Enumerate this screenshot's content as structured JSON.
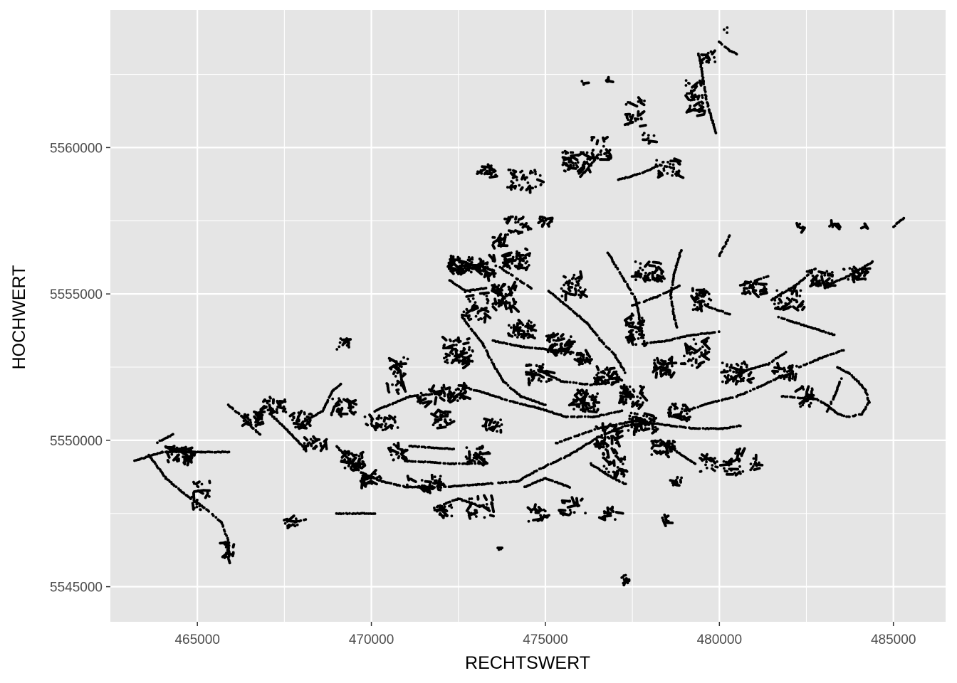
{
  "chart_data": {
    "type": "scatter",
    "title": "",
    "xlabel": "RECHTSWERT",
    "ylabel": "HOCHWERT",
    "xlim": [
      462500,
      486500
    ],
    "ylim": [
      5543800,
      5564700
    ],
    "x_ticks": [
      465000,
      470000,
      475000,
      480000,
      485000
    ],
    "x_tick_labels": [
      "465000",
      "470000",
      "475000",
      "480000",
      "485000"
    ],
    "y_ticks": [
      5545000,
      5550000,
      5555000,
      5560000
    ],
    "y_tick_labels": [
      "5545000",
      "5550000",
      "5555000",
      "5560000"
    ],
    "grid": true,
    "legend": "none",
    "point_color": "#000000",
    "panel_background": "#e5e5e5",
    "gridline_color": "#ffffff",
    "tracks": [
      [
        [
          463200,
          5549300
        ],
        [
          464000,
          5549600
        ],
        [
          465100,
          5549600
        ],
        [
          465900,
          5549600
        ]
      ],
      [
        [
          463600,
          5549500
        ],
        [
          464100,
          5548700
        ],
        [
          464700,
          5548100
        ],
        [
          465200,
          5547700
        ],
        [
          465700,
          5547200
        ],
        [
          465900,
          5546500
        ],
        [
          465900,
          5545900
        ]
      ],
      [
        [
          463800,
          5549900
        ],
        [
          464300,
          5550200
        ]
      ],
      [
        [
          465900,
          5551200
        ],
        [
          466300,
          5550800
        ],
        [
          466600,
          5550400
        ],
        [
          466800,
          5550200
        ]
      ],
      [
        [
          467100,
          5550900
        ],
        [
          467700,
          5550200
        ],
        [
          468100,
          5549700
        ]
      ],
      [
        [
          468000,
          5550600
        ],
        [
          468600,
          5551000
        ],
        [
          468900,
          5551700
        ],
        [
          469200,
          5552000
        ]
      ],
      [
        [
          467600,
          5547000
        ],
        [
          467800,
          5547200
        ],
        [
          468100,
          5547300
        ]
      ],
      [
        [
          469000,
          5549800
        ],
        [
          469700,
          5548900
        ],
        [
          470300,
          5548600
        ],
        [
          471000,
          5548400
        ],
        [
          472000,
          5548400
        ],
        [
          473200,
          5548500
        ],
        [
          474200,
          5548600
        ],
        [
          474800,
          5549000
        ],
        [
          475700,
          5549500
        ],
        [
          476500,
          5550100
        ],
        [
          477300,
          5550500
        ],
        [
          478000,
          5550600
        ],
        [
          478600,
          5550500
        ],
        [
          479300,
          5550400
        ],
        [
          480100,
          5550400
        ],
        [
          480600,
          5550500
        ]
      ],
      [
        [
          469000,
          5547500
        ],
        [
          470100,
          5547500
        ]
      ],
      [
        [
          470100,
          5551000
        ],
        [
          471100,
          5551500
        ],
        [
          472000,
          5551600
        ]
      ],
      [
        [
          471100,
          5549800
        ],
        [
          472400,
          5549700
        ]
      ],
      [
        [
          471000,
          5549300
        ],
        [
          472300,
          5549200
        ],
        [
          473300,
          5549200
        ]
      ],
      [
        [
          471800,
          5547700
        ],
        [
          472500,
          5548000
        ],
        [
          473300,
          5547700
        ]
      ],
      [
        [
          472600,
          5554200
        ],
        [
          473200,
          5553300
        ],
        [
          473500,
          5552600
        ],
        [
          473800,
          5552000
        ],
        [
          474300,
          5551500
        ],
        [
          475000,
          5551200
        ]
      ],
      [
        [
          472700,
          5551800
        ],
        [
          473300,
          5551600
        ],
        [
          474100,
          5551300
        ],
        [
          474800,
          5551100
        ],
        [
          475600,
          5550800
        ],
        [
          476400,
          5550800
        ],
        [
          477200,
          5551000
        ]
      ],
      [
        [
          474400,
          5548400
        ],
        [
          475000,
          5548700
        ],
        [
          475700,
          5548400
        ]
      ],
      [
        [
          475300,
          5549900
        ],
        [
          476500,
          5550400
        ],
        [
          477700,
          5550700
        ]
      ],
      [
        [
          474800,
          5552400
        ],
        [
          475500,
          5552000
        ],
        [
          476300,
          5551900
        ],
        [
          477100,
          5552000
        ]
      ],
      [
        [
          473500,
          5553400
        ],
        [
          474300,
          5553200
        ],
        [
          475100,
          5553100
        ],
        [
          475800,
          5553000
        ]
      ],
      [
        [
          475100,
          5555100
        ],
        [
          475700,
          5554500
        ],
        [
          476200,
          5554000
        ],
        [
          476600,
          5553400
        ],
        [
          477000,
          5552900
        ],
        [
          477300,
          5552300
        ]
      ],
      [
        [
          476800,
          5556400
        ],
        [
          477200,
          5555600
        ],
        [
          477600,
          5554800
        ],
        [
          477700,
          5554200
        ],
        [
          477800,
          5553500
        ]
      ],
      [
        [
          477500,
          5554600
        ],
        [
          478200,
          5554900
        ],
        [
          478900,
          5555300
        ]
      ],
      [
        [
          477800,
          5553300
        ],
        [
          478500,
          5553400
        ],
        [
          479200,
          5553600
        ],
        [
          480000,
          5553700
        ]
      ],
      [
        [
          478900,
          5556500
        ],
        [
          478700,
          5555700
        ],
        [
          478600,
          5555000
        ],
        [
          478700,
          5554200
        ],
        [
          478800,
          5553800
        ]
      ],
      [
        [
          479600,
          5554600
        ],
        [
          480300,
          5554300
        ]
      ],
      [
        [
          480200,
          5552000
        ],
        [
          480800,
          5552400
        ],
        [
          481400,
          5552600
        ],
        [
          481900,
          5553000
        ]
      ],
      [
        [
          479000,
          5551000
        ],
        [
          479800,
          5551300
        ],
        [
          480500,
          5551500
        ],
        [
          481100,
          5551800
        ],
        [
          481800,
          5552200
        ]
      ],
      [
        [
          480600,
          5555300
        ],
        [
          481400,
          5555600
        ]
      ],
      [
        [
          481500,
          5554800
        ],
        [
          482200,
          5555300
        ],
        [
          482800,
          5555900
        ]
      ],
      [
        [
          483100,
          5555300
        ],
        [
          483700,
          5555600
        ],
        [
          484400,
          5556100
        ]
      ],
      [
        [
          481700,
          5554200
        ],
        [
          482500,
          5553900
        ],
        [
          483300,
          5553600
        ]
      ],
      [
        [
          482300,
          5552500
        ],
        [
          482900,
          5552800
        ],
        [
          483600,
          5553100
        ]
      ],
      [
        [
          481800,
          5551500
        ],
        [
          482800,
          5551400
        ],
        [
          483100,
          5551200
        ],
        [
          483400,
          5550900
        ],
        [
          483700,
          5550800
        ],
        [
          484100,
          5550900
        ],
        [
          484300,
          5551300
        ],
        [
          484200,
          5551700
        ],
        [
          484000,
          5552000
        ],
        [
          483700,
          5552300
        ],
        [
          483400,
          5552500
        ]
      ],
      [
        [
          483500,
          5552100
        ],
        [
          483300,
          5551500
        ],
        [
          483100,
          5551000
        ]
      ],
      [
        [
          478300,
          5550000
        ],
        [
          478800,
          5549600
        ],
        [
          479300,
          5549200
        ]
      ],
      [
        [
          476300,
          5549200
        ],
        [
          476800,
          5548800
        ],
        [
          477300,
          5548500
        ]
      ],
      [
        [
          476000,
          5559000
        ],
        [
          476300,
          5559400
        ],
        [
          476600,
          5559900
        ]
      ],
      [
        [
          477100,
          5558900
        ],
        [
          477700,
          5559100
        ],
        [
          478300,
          5559400
        ],
        [
          478700,
          5559300
        ]
      ],
      [
        [
          479400,
          5563200
        ],
        [
          479500,
          5562600
        ],
        [
          479600,
          5561800
        ],
        [
          479700,
          5561300
        ],
        [
          479800,
          5560900
        ],
        [
          479900,
          5560500
        ]
      ],
      [
        [
          480000,
          5563600
        ],
        [
          480300,
          5563300
        ],
        [
          480500,
          5563200
        ]
      ],
      [
        [
          472200,
          5555500
        ],
        [
          472700,
          5555100
        ],
        [
          473300,
          5555200
        ]
      ],
      [
        [
          473700,
          5555900
        ],
        [
          474200,
          5555500
        ],
        [
          474600,
          5555200
        ]
      ],
      [
        [
          480000,
          5556300
        ],
        [
          480300,
          5557000
        ]
      ],
      [
        [
          485000,
          5557300
        ],
        [
          485300,
          5557600
        ]
      ],
      [
        [
          477200,
          5545300
        ],
        [
          477300,
          5545400
        ]
      ]
    ],
    "clusters": [
      [
        464500,
        5549500,
        500,
        400,
        40
      ],
      [
        465100,
        5548100,
        400,
        700,
        25
      ],
      [
        465900,
        5546200,
        200,
        500,
        20
      ],
      [
        466600,
        5550700,
        400,
        350,
        30
      ],
      [
        467200,
        5551200,
        500,
        400,
        35
      ],
      [
        468000,
        5550700,
        400,
        400,
        35
      ],
      [
        468400,
        5549900,
        500,
        300,
        25
      ],
      [
        469200,
        5551200,
        500,
        500,
        30
      ],
      [
        469500,
        5549300,
        400,
        500,
        45
      ],
      [
        470000,
        5548700,
        400,
        300,
        20
      ],
      [
        470300,
        5550600,
        700,
        400,
        30
      ],
      [
        470800,
        5549600,
        400,
        400,
        25
      ],
      [
        471500,
        5548500,
        700,
        400,
        30
      ],
      [
        472000,
        5550700,
        400,
        400,
        25
      ],
      [
        472400,
        5551600,
        500,
        400,
        35
      ],
      [
        473000,
        5549500,
        400,
        400,
        30
      ],
      [
        473500,
        5550500,
        400,
        300,
        20
      ],
      [
        472500,
        5553000,
        600,
        700,
        60
      ],
      [
        473000,
        5554600,
        500,
        700,
        40
      ],
      [
        472600,
        5556000,
        500,
        400,
        60
      ],
      [
        473300,
        5555900,
        400,
        500,
        40
      ],
      [
        473800,
        5554900,
        500,
        600,
        55
      ],
      [
        474200,
        5556200,
        500,
        500,
        40
      ],
      [
        474300,
        5553800,
        500,
        400,
        50
      ],
      [
        474800,
        5552300,
        500,
        500,
        40
      ],
      [
        475400,
        5553300,
        500,
        500,
        45
      ],
      [
        475800,
        5555300,
        500,
        600,
        40
      ],
      [
        476200,
        5551300,
        600,
        500,
        50
      ],
      [
        476800,
        5552200,
        500,
        400,
        45
      ],
      [
        476100,
        5552800,
        300,
        300,
        30
      ],
      [
        476800,
        5550000,
        500,
        700,
        45
      ],
      [
        477000,
        5549100,
        500,
        500,
        35
      ],
      [
        477600,
        5553800,
        400,
        800,
        45
      ],
      [
        477500,
        5551500,
        500,
        500,
        50
      ],
      [
        477800,
        5550600,
        600,
        500,
        45
      ],
      [
        478400,
        5552500,
        400,
        400,
        40
      ],
      [
        478000,
        5555800,
        600,
        500,
        40
      ],
      [
        478400,
        5549700,
        500,
        400,
        35
      ],
      [
        478800,
        5551000,
        400,
        400,
        30
      ],
      [
        479300,
        5553000,
        500,
        700,
        40
      ],
      [
        479500,
        5554800,
        400,
        500,
        35
      ],
      [
        480500,
        5552300,
        600,
        500,
        50
      ],
      [
        481000,
        5555200,
        400,
        300,
        30
      ],
      [
        482000,
        5554800,
        600,
        500,
        40
      ],
      [
        482900,
        5555500,
        500,
        400,
        35
      ],
      [
        483900,
        5555700,
        500,
        300,
        25
      ],
      [
        481900,
        5552300,
        500,
        400,
        25
      ],
      [
        482500,
        5551500,
        300,
        500,
        25
      ],
      [
        479700,
        5549200,
        400,
        400,
        20
      ],
      [
        480400,
        5549100,
        400,
        400,
        20
      ],
      [
        478800,
        5548600,
        200,
        200,
        12
      ],
      [
        475800,
        5547700,
        500,
        400,
        20
      ],
      [
        474800,
        5547500,
        400,
        400,
        20
      ],
      [
        473200,
        5547700,
        600,
        500,
        25
      ],
      [
        472100,
        5547600,
        300,
        300,
        20
      ],
      [
        471700,
        5551500,
        500,
        400,
        20
      ],
      [
        470700,
        5551800,
        400,
        300,
        15
      ],
      [
        475900,
        5559500,
        600,
        500,
        45
      ],
      [
        476600,
        5560000,
        400,
        600,
        25
      ],
      [
        477600,
        5561200,
        400,
        800,
        25
      ],
      [
        478500,
        5559300,
        500,
        400,
        30
      ],
      [
        478000,
        5560300,
        300,
        300,
        10
      ],
      [
        479300,
        5561700,
        400,
        900,
        35
      ],
      [
        479700,
        5563100,
        300,
        300,
        15
      ],
      [
        474400,
        5558900,
        700,
        500,
        40
      ],
      [
        473300,
        5559200,
        400,
        300,
        20
      ],
      [
        474200,
        5557300,
        500,
        500,
        20
      ],
      [
        475000,
        5557500,
        300,
        300,
        15
      ],
      [
        473700,
        5556800,
        300,
        300,
        15
      ],
      [
        470800,
        5552500,
        400,
        500,
        20
      ],
      [
        469200,
        5553300,
        300,
        300,
        12
      ],
      [
        467700,
        5547200,
        300,
        200,
        15
      ],
      [
        483300,
        5557400,
        200,
        200,
        10
      ],
      [
        482300,
        5557300,
        200,
        200,
        10
      ],
      [
        484200,
        5557300,
        100,
        100,
        5
      ],
      [
        481000,
        5549200,
        200,
        400,
        10
      ],
      [
        480600,
        5549400,
        200,
        400,
        10
      ],
      [
        478500,
        5547300,
        200,
        200,
        8
      ],
      [
        476900,
        5547500,
        400,
        300,
        15
      ],
      [
        473700,
        5546300,
        50,
        50,
        3
      ],
      [
        477300,
        5545200,
        100,
        50,
        8
      ],
      [
        480200,
        5564000,
        150,
        150,
        3
      ],
      [
        476100,
        5562200,
        100,
        100,
        3
      ],
      [
        476800,
        5562300,
        100,
        100,
        3
      ]
    ]
  }
}
